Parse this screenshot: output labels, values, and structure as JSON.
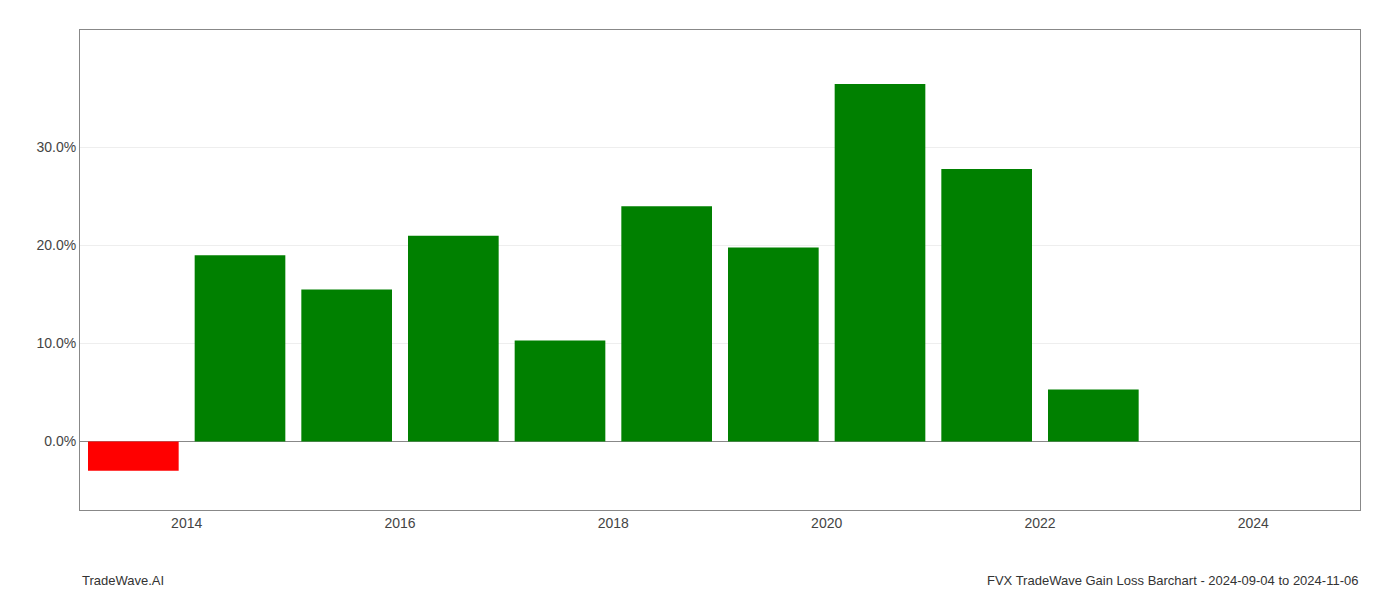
{
  "chart_data": {
    "type": "bar",
    "title": "FVX TradeWave Gain Loss Barchart - 2024-09-04 to 2024-11-06",
    "annotations": [
      "TradeWave.AI"
    ],
    "x": [
      2013.5,
      2014.5,
      2015.5,
      2016.5,
      2017.5,
      2018.5,
      2019.5,
      2020.5,
      2021.5,
      2022.5
    ],
    "values": [
      -0.03,
      0.19,
      0.155,
      0.21,
      0.103,
      0.24,
      0.198,
      0.365,
      0.278,
      0.053
    ],
    "colors": [
      "#ff0000",
      "#008000",
      "#008000",
      "#008000",
      "#008000",
      "#008000",
      "#008000",
      "#008000",
      "#008000",
      "#008000"
    ],
    "xlim": [
      2013.0,
      2025.0
    ],
    "xticks": [
      2014,
      2016,
      2018,
      2020,
      2022,
      2024
    ],
    "ylim": [
      -0.07,
      0.42
    ],
    "yticks": [
      {
        "value": 0.0,
        "label": "0.0%"
      },
      {
        "value": 0.1,
        "label": "10.0%"
      },
      {
        "value": 0.2,
        "label": "20.0%"
      },
      {
        "value": 0.3,
        "label": "30.0%"
      }
    ],
    "grid": true
  }
}
